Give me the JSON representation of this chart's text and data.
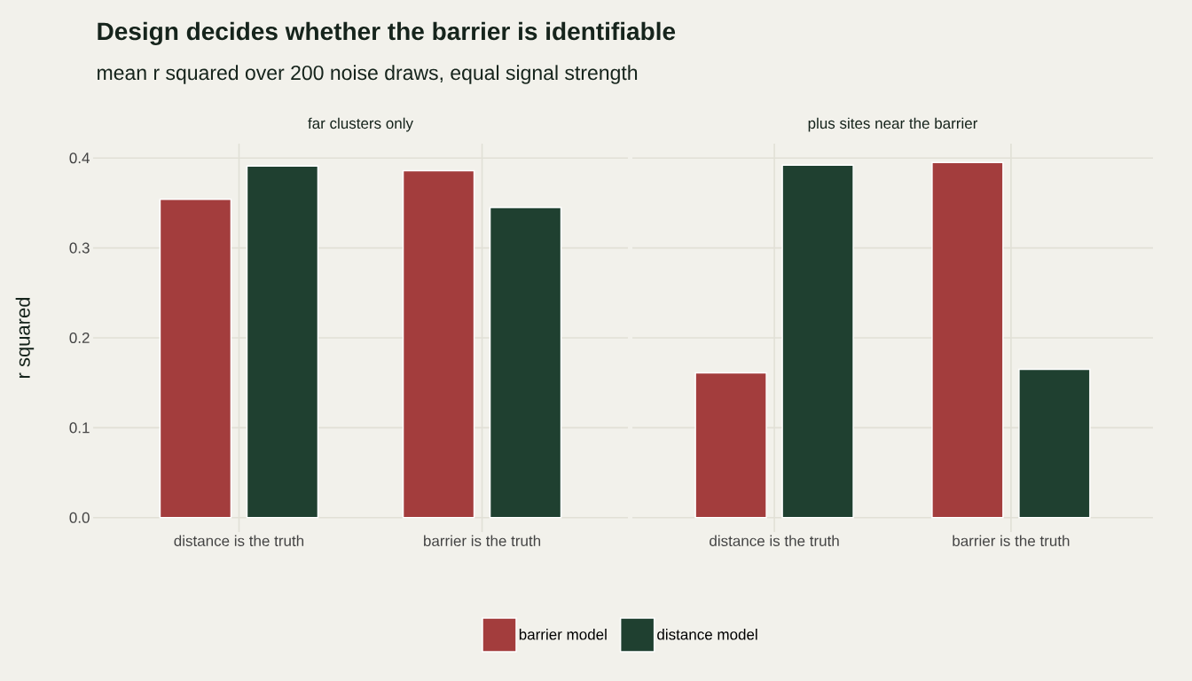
{
  "chart_data": [
    {
      "type": "bar",
      "title": "Design decides whether the barrier is identifiable",
      "subtitle": "mean r squared over 200 noise draws, equal signal strength",
      "annotations": [
        "far clusters only"
      ],
      "ylabel": "r squared",
      "categories": [
        "distance is the truth",
        "barrier is the truth"
      ],
      "series": [
        {
          "name": "barrier model",
          "color": "#a33d3d",
          "values": [
            0.354,
            0.386
          ]
        },
        {
          "name": "distance model",
          "color": "#1f4030",
          "values": [
            0.391,
            0.345
          ]
        }
      ],
      "ylim": [
        -0.016,
        0.416
      ],
      "yticks": [
        {
          "value": 0,
          "label": "0.0"
        },
        0.1,
        0.2,
        0.3,
        0.4
      ],
      "grid": true,
      "legend": "bottom"
    },
    {
      "type": "bar",
      "annotations": [
        "plus sites near the barrier"
      ],
      "categories": [
        "distance is the truth",
        "barrier is the truth"
      ],
      "series": [
        {
          "color": "#a33d3d",
          "values": [
            0.161,
            0.395
          ]
        },
        {
          "color": "#1f4030",
          "values": [
            0.392,
            0.165
          ]
        }
      ],
      "ylim": [
        -0.016,
        0.416
      ],
      "yticks": [
        0,
        0.1,
        0.2,
        0.3,
        0.4
      ],
      "grid": true,
      "tick_labels": "x"
    }
  ]
}
